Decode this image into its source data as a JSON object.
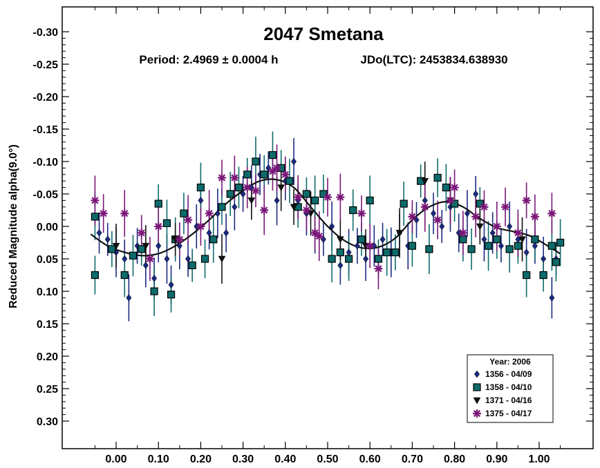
{
  "chart_data": {
    "type": "scatter",
    "title": "2047 Smetana",
    "subtitle_period": "Period: 2.4969 ± 0.0004 h",
    "subtitle_epoch": "JDo(LTC): 2453834.638930",
    "ylabel": "Reduced Magnitude alpha(9.0°)",
    "xlabel": "",
    "xlim": [
      -0.13,
      1.12
    ],
    "ylim": [
      0.33,
      -0.33
    ],
    "y_inverted": true,
    "x_ticks": [
      "0.00",
      "0.10",
      "0.20",
      "0.30",
      "0.40",
      "0.50",
      "0.60",
      "0.70",
      "0.80",
      "0.90",
      "1.00"
    ],
    "y_ticks": [
      "-0.30",
      "-0.25",
      "-0.20",
      "-0.15",
      "-0.10",
      "-0.05",
      "0.00",
      "0.05",
      "0.10",
      "0.15",
      "0.20",
      "0.25",
      "0.30"
    ],
    "grid": false,
    "legend_position": "bottom-right",
    "legend_title": "Year: 2006",
    "series": [
      {
        "name": "1356 - 04/09",
        "marker": "diamond",
        "color": "#1a2a80",
        "points": [
          [
            -0.04,
            0.01
          ],
          [
            -0.02,
            0.02
          ],
          [
            0.0,
            0.04
          ],
          [
            0.02,
            0.05
          ],
          [
            0.03,
            0.11
          ],
          [
            0.05,
            0.03
          ],
          [
            0.07,
            0.06
          ],
          [
            0.09,
            0.08
          ],
          [
            0.1,
            0.03
          ],
          [
            0.12,
            0.05
          ],
          [
            0.13,
            0.09
          ],
          [
            0.15,
            0.03
          ],
          [
            0.17,
            0.05
          ],
          [
            0.19,
            0.0
          ],
          [
            0.2,
            -0.04
          ],
          [
            0.22,
            0.01
          ],
          [
            0.24,
            -0.02
          ],
          [
            0.26,
            0.01
          ],
          [
            0.28,
            -0.03
          ],
          [
            0.3,
            -0.05
          ],
          [
            0.32,
            -0.06
          ],
          [
            0.34,
            -0.08
          ],
          [
            0.36,
            -0.09
          ],
          [
            0.38,
            -0.04
          ],
          [
            0.4,
            -0.07
          ],
          [
            0.42,
            -0.1
          ],
          [
            0.43,
            -0.04
          ],
          [
            0.45,
            -0.02
          ],
          [
            0.47,
            0.01
          ],
          [
            0.49,
            0.02
          ],
          [
            0.51,
            0.0
          ],
          [
            0.53,
            0.06
          ],
          [
            0.55,
            0.04
          ],
          [
            0.57,
            0.03
          ],
          [
            0.59,
            0.05
          ],
          [
            0.61,
            0.03
          ],
          [
            0.63,
            0.02
          ],
          [
            0.65,
            0.04
          ],
          [
            0.67,
            0.01
          ],
          [
            0.69,
            0.03
          ],
          [
            0.71,
            -0.01
          ],
          [
            0.73,
            -0.04
          ],
          [
            0.75,
            -0.02
          ],
          [
            0.77,
            0.0
          ],
          [
            0.79,
            -0.03
          ],
          [
            0.81,
            0.01
          ],
          [
            0.83,
            -0.02
          ],
          [
            0.85,
            -0.05
          ],
          [
            0.87,
            0.02
          ],
          [
            0.89,
            0.01
          ],
          [
            0.91,
            0.03
          ],
          [
            0.93,
            0.0
          ],
          [
            0.95,
            0.02
          ],
          [
            0.97,
            0.04
          ],
          [
            0.99,
            0.03
          ],
          [
            1.01,
            0.05
          ],
          [
            1.03,
            0.11
          ],
          [
            1.04,
            0.05
          ]
        ]
      },
      {
        "name": "1358 - 04/10",
        "marker": "square",
        "color": "#0d6b6b",
        "points": [
          [
            -0.05,
            0.075
          ],
          [
            -0.05,
            -0.015
          ],
          [
            -0.01,
            0.035
          ],
          [
            0.02,
            0.075
          ],
          [
            0.04,
            0.045
          ],
          [
            0.06,
            0.035
          ],
          [
            0.09,
            0.1
          ],
          [
            0.1,
            -0.035
          ],
          [
            0.12,
            -0.005
          ],
          [
            0.13,
            0.105
          ],
          [
            0.14,
            0.02
          ],
          [
            0.16,
            -0.02
          ],
          [
            0.18,
            0.06
          ],
          [
            0.2,
            -0.06
          ],
          [
            0.21,
            0.05
          ],
          [
            0.23,
            0.02
          ],
          [
            0.25,
            -0.03
          ],
          [
            0.27,
            -0.05
          ],
          [
            0.29,
            -0.06
          ],
          [
            0.31,
            -0.08
          ],
          [
            0.33,
            -0.1
          ],
          [
            0.35,
            -0.08
          ],
          [
            0.37,
            -0.11
          ],
          [
            0.39,
            -0.09
          ],
          [
            0.41,
            -0.07
          ],
          [
            0.43,
            -0.03
          ],
          [
            0.45,
            -0.05
          ],
          [
            0.47,
            -0.04
          ],
          [
            0.49,
            -0.05
          ],
          [
            0.51,
            0.05
          ],
          [
            0.53,
            0.04
          ],
          [
            0.55,
            0.05
          ],
          [
            0.56,
            -0.025
          ],
          [
            0.58,
            0.02
          ],
          [
            0.6,
            -0.04
          ],
          [
            0.62,
            0.05
          ],
          [
            0.64,
            0.04
          ],
          [
            0.66,
            0.04
          ],
          [
            0.68,
            -0.035
          ],
          [
            0.7,
            0.03
          ],
          [
            0.72,
            -0.07
          ],
          [
            0.74,
            0.035
          ],
          [
            0.76,
            -0.075
          ],
          [
            0.78,
            -0.06
          ],
          [
            0.8,
            -0.035
          ],
          [
            0.82,
            0.02
          ],
          [
            0.84,
            0.035
          ],
          [
            0.86,
            -0.035
          ],
          [
            0.88,
            0.03
          ],
          [
            0.9,
            0.02
          ],
          [
            0.93,
            0.035
          ],
          [
            0.95,
            0.03
          ],
          [
            0.97,
            0.075
          ],
          [
            0.99,
            0.02
          ],
          [
            1.01,
            0.075
          ],
          [
            1.03,
            0.03
          ],
          [
            1.04,
            0.055
          ],
          [
            1.05,
            0.025
          ]
        ]
      },
      {
        "name": "1371 - 04/16",
        "marker": "triangle-down",
        "color": "#111111",
        "points": [
          [
            0.0,
            0.03
          ],
          [
            0.07,
            0.03
          ],
          [
            0.14,
            0.02
          ],
          [
            0.25,
            0.05
          ],
          [
            0.32,
            -0.04
          ],
          [
            0.39,
            -0.06
          ],
          [
            0.42,
            -0.03
          ],
          [
            0.46,
            -0.02
          ],
          [
            0.53,
            0.02
          ],
          [
            0.59,
            0.03
          ],
          [
            0.67,
            0.01
          ],
          [
            0.73,
            -0.07
          ],
          [
            0.79,
            -0.04
          ],
          [
            0.86,
            0.0
          ],
          [
            0.96,
            0.02
          ]
        ]
      },
      {
        "name": "1375 - 04/17",
        "marker": "asterisk",
        "color": "#7a1778",
        "points": [
          [
            -0.05,
            -0.04
          ],
          [
            -0.03,
            -0.02
          ],
          [
            0.02,
            -0.02
          ],
          [
            0.06,
            0.01
          ],
          [
            0.08,
            0.05
          ],
          [
            0.1,
            0.0
          ],
          [
            0.15,
            0.02
          ],
          [
            0.17,
            -0.01
          ],
          [
            0.2,
            0.0
          ],
          [
            0.22,
            -0.02
          ],
          [
            0.25,
            -0.075
          ],
          [
            0.28,
            -0.075
          ],
          [
            0.31,
            -0.06
          ],
          [
            0.33,
            -0.055
          ],
          [
            0.35,
            -0.025
          ],
          [
            0.37,
            -0.085
          ],
          [
            0.38,
            -0.09
          ],
          [
            0.4,
            -0.08
          ],
          [
            0.43,
            -0.045
          ],
          [
            0.45,
            -0.025
          ],
          [
            0.47,
            0.01
          ],
          [
            0.48,
            0.015
          ],
          [
            0.5,
            -0.045
          ],
          [
            0.53,
            -0.045
          ],
          [
            0.58,
            -0.02
          ],
          [
            0.6,
            0.03
          ],
          [
            0.62,
            0.065
          ],
          [
            0.7,
            -0.015
          ],
          [
            0.73,
            -0.03
          ],
          [
            0.76,
            -0.01
          ],
          [
            0.79,
            -0.04
          ],
          [
            0.8,
            -0.06
          ],
          [
            0.82,
            0.01
          ],
          [
            0.85,
            -0.015
          ],
          [
            0.87,
            -0.03
          ],
          [
            0.9,
            0.0
          ],
          [
            0.92,
            -0.03
          ],
          [
            0.95,
            0.01
          ],
          [
            0.97,
            -0.04
          ],
          [
            0.99,
            -0.015
          ],
          [
            1.03,
            -0.02
          ]
        ]
      }
    ],
    "fit_curve": [
      [
        -0.06,
        0.012
      ],
      [
        -0.02,
        0.03
      ],
      [
        0.02,
        0.04
      ],
      [
        0.06,
        0.045
      ],
      [
        0.1,
        0.042
      ],
      [
        0.14,
        0.03
      ],
      [
        0.18,
        0.012
      ],
      [
        0.22,
        -0.01
      ],
      [
        0.26,
        -0.035
      ],
      [
        0.3,
        -0.055
      ],
      [
        0.34,
        -0.07
      ],
      [
        0.38,
        -0.072
      ],
      [
        0.42,
        -0.06
      ],
      [
        0.46,
        -0.03
      ],
      [
        0.5,
        0.0
      ],
      [
        0.54,
        0.022
      ],
      [
        0.58,
        0.033
      ],
      [
        0.62,
        0.032
      ],
      [
        0.66,
        0.018
      ],
      [
        0.7,
        -0.01
      ],
      [
        0.74,
        -0.03
      ],
      [
        0.78,
        -0.038
      ],
      [
        0.82,
        -0.03
      ],
      [
        0.86,
        -0.012
      ],
      [
        0.9,
        0.002
      ],
      [
        0.94,
        0.008
      ],
      [
        0.98,
        0.015
      ],
      [
        1.02,
        0.03
      ],
      [
        1.05,
        0.042
      ]
    ]
  }
}
